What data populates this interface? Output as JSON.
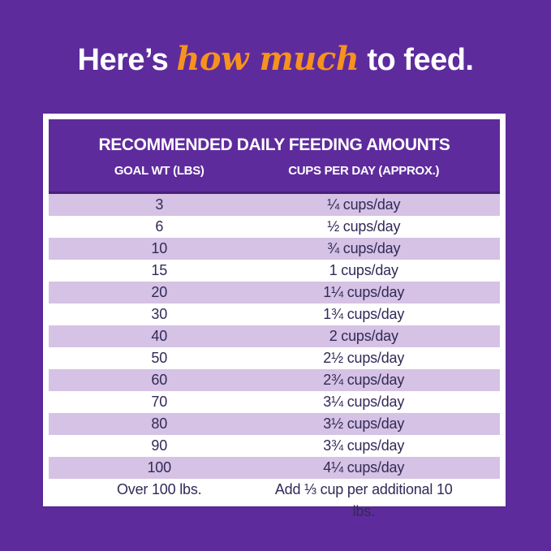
{
  "page_title": {
    "part1": "Here’s ",
    "part2": "how much",
    "part3": " to feed."
  },
  "colors": {
    "background": "#5E2B9C",
    "header_purple": "#5E2B9C",
    "header_divider": "#4A1F7A",
    "row_lavender": "#D5C2E4",
    "text_dark": "#312A58",
    "accent_orange": "#F6921E",
    "card_white": "#FFFFFF"
  },
  "chart_data": {
    "type": "table",
    "title": "RECOMMENDED DAILY FEEDING AMOUNTS",
    "columns": [
      "GOAL WT (LBS)",
      "CUPS PER DAY (APPROX.)"
    ],
    "rows": [
      [
        "3",
        "¼ cups/day"
      ],
      [
        "6",
        "½ cups/day"
      ],
      [
        "10",
        "¾ cups/day"
      ],
      [
        "15",
        "1 cups/day"
      ],
      [
        "20",
        "1¼ cups/day"
      ],
      [
        "30",
        "1¾ cups/day"
      ],
      [
        "40",
        "2 cups/day"
      ],
      [
        "50",
        "2½ cups/day"
      ],
      [
        "60",
        "2¾ cups/day"
      ],
      [
        "70",
        "3¼ cups/day"
      ],
      [
        "80",
        "3½ cups/day"
      ],
      [
        "90",
        "3¾ cups/day"
      ],
      [
        "100",
        "4¼ cups/day"
      ],
      [
        "Over 100 lbs.",
        "Add ⅓ cup per additional 10 lbs."
      ]
    ],
    "striping": "alternating rows shaded lavender, starting with the first data row",
    "legend": "none",
    "grid": "off"
  }
}
